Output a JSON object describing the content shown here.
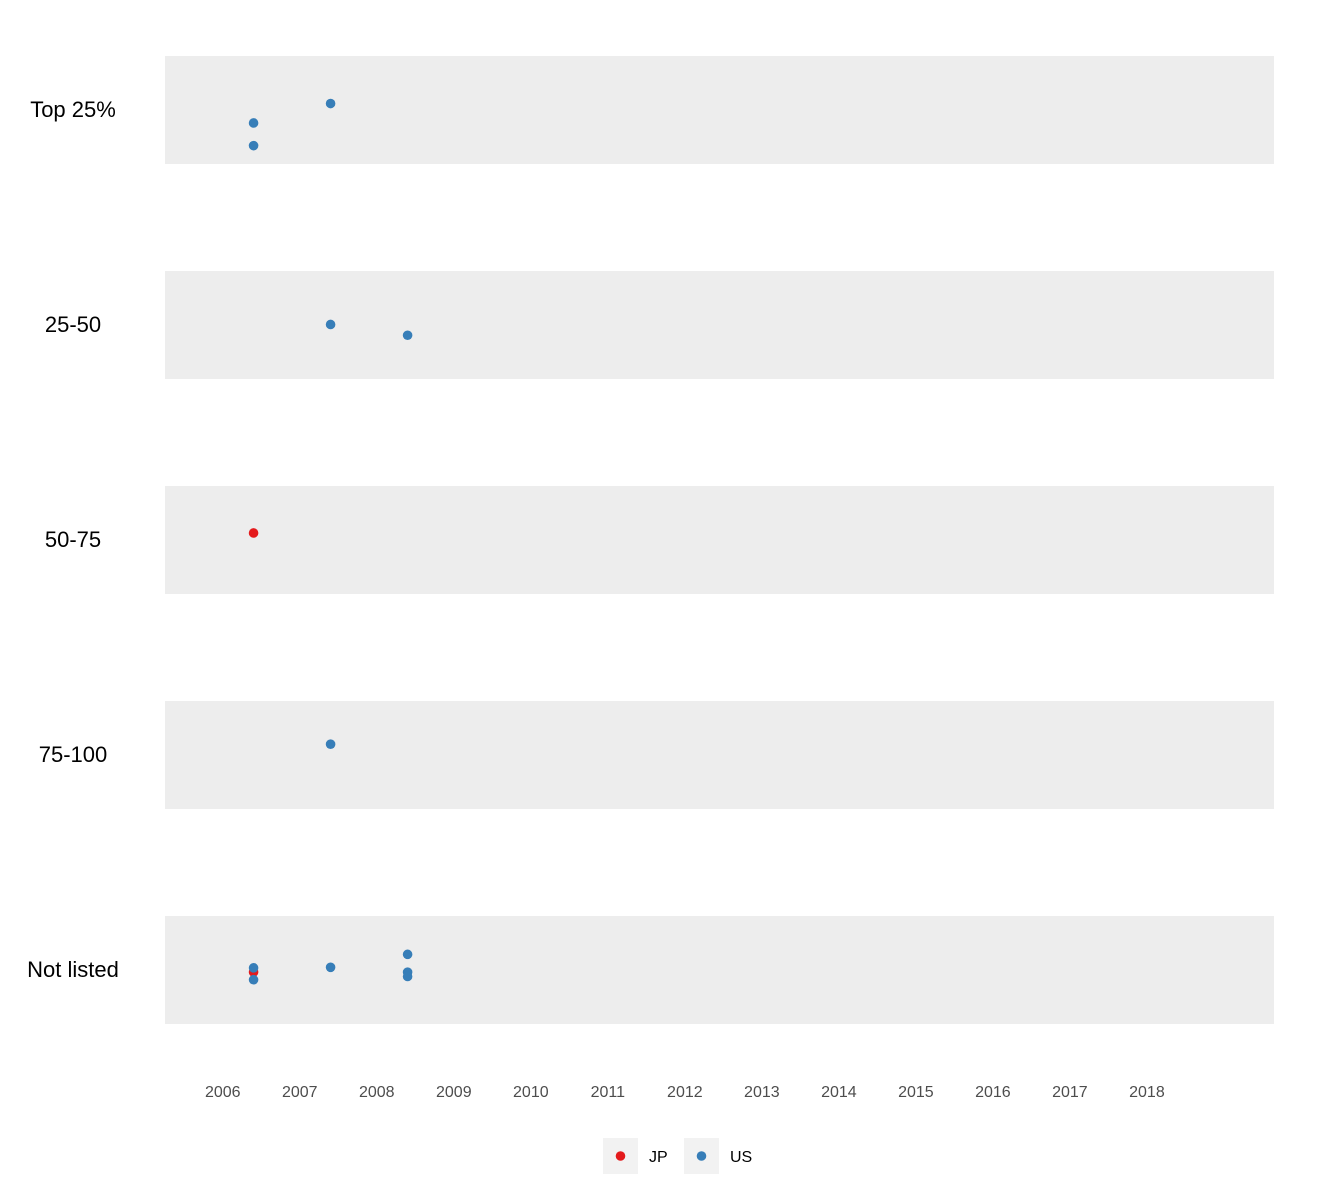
{
  "chart_data": {
    "type": "scatter",
    "title": "",
    "xlabel": "",
    "ylabel": "",
    "x_ticks": [
      "2006",
      "2007",
      "2008",
      "2009",
      "2010",
      "2011",
      "2012",
      "2013",
      "2014",
      "2015",
      "2016",
      "2017",
      "2018"
    ],
    "xlim": [
      2005.25,
      2019.65
    ],
    "categories": [
      "Top 25%",
      "25-50",
      "50-75",
      "75-100",
      "Not listed"
    ],
    "grid": false,
    "legend_position": "bottom",
    "series": [
      {
        "name": "JP",
        "color": "#E41A1C",
        "points": [
          {
            "x": 2006.4,
            "category": "50-75",
            "jitter": 0.13
          },
          {
            "x": 2006.4,
            "category": "Not listed",
            "jitter": -0.04
          }
        ]
      },
      {
        "name": "US",
        "color": "#377EB8",
        "points": [
          {
            "x": 2007.4,
            "category": "Top 25%",
            "jitter": 0.12
          },
          {
            "x": 2006.4,
            "category": "Top 25%",
            "jitter": -0.24
          },
          {
            "x": 2006.4,
            "category": "Top 25%",
            "jitter": -0.66
          },
          {
            "x": 2007.4,
            "category": "25-50",
            "jitter": 0.01
          },
          {
            "x": 2008.4,
            "category": "25-50",
            "jitter": -0.19
          },
          {
            "x": 2007.4,
            "category": "75-100",
            "jitter": 0.2
          },
          {
            "x": 2008.4,
            "category": "Not listed",
            "jitter": 0.29
          },
          {
            "x": 2006.4,
            "category": "Not listed",
            "jitter": 0.04
          },
          {
            "x": 2007.4,
            "category": "Not listed",
            "jitter": 0.05
          },
          {
            "x": 2008.4,
            "category": "Not listed",
            "jitter": -0.04
          },
          {
            "x": 2008.4,
            "category": "Not listed",
            "jitter": -0.12
          },
          {
            "x": 2006.4,
            "category": "Not listed",
            "jitter": -0.18
          }
        ]
      }
    ]
  }
}
